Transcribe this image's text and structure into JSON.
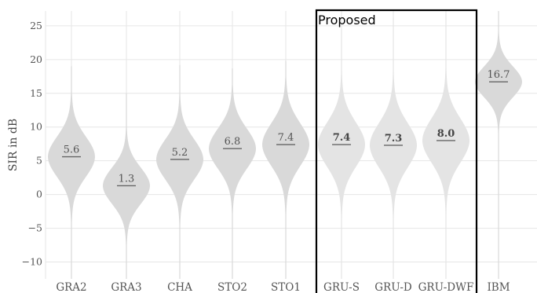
{
  "chart_data": {
    "type": "violin",
    "ylabel": "SIR in dB",
    "ylim": [
      -12.5,
      27.2
    ],
    "yticks": [
      -10,
      -5,
      0,
      5,
      10,
      15,
      20,
      25
    ],
    "ytick_labels": [
      "−10",
      "−5",
      "0",
      "5",
      "10",
      "15",
      "20",
      "25"
    ],
    "grid": true,
    "categories": [
      "GRA2",
      "GRA3",
      "CHA",
      "STO2",
      "STO1",
      "GRU-S",
      "GRU-D",
      "GRU-DWF",
      "IBM"
    ],
    "medians": [
      5.6,
      1.3,
      5.2,
      6.8,
      7.4,
      7.4,
      7.3,
      8.0,
      16.7
    ],
    "median_labels": [
      "5.6",
      "1.3",
      "5.2",
      "6.8",
      "7.4",
      "7.4",
      "7.3",
      "8.0",
      "16.7"
    ],
    "bold_labels": [
      false,
      false,
      false,
      false,
      false,
      true,
      true,
      true,
      false
    ],
    "ranges": [
      [
        -12.5,
        19.0
      ],
      [
        -12.5,
        15.0
      ],
      [
        -12.5,
        19.2
      ],
      [
        -12.5,
        18.7
      ],
      [
        -12.5,
        19.8
      ],
      [
        -12.5,
        24.5
      ],
      [
        -12.5,
        26.2
      ],
      [
        -12.5,
        26.8
      ],
      [
        -12.5,
        27.2
      ]
    ],
    "spread": [
      3.0,
      2.7,
      3.0,
      3.0,
      3.2,
      3.3,
      3.3,
      3.3,
      2.3
    ],
    "annotation_box": {
      "label": "Proposed",
      "categories": [
        "GRU-S",
        "GRU-D",
        "GRU-DWF"
      ]
    },
    "colors": {
      "violin": "#d9d9d9",
      "violin_light": "#e4e4e4",
      "median": "#666666",
      "grid": "#e6e6e6",
      "box": "#000000"
    }
  }
}
